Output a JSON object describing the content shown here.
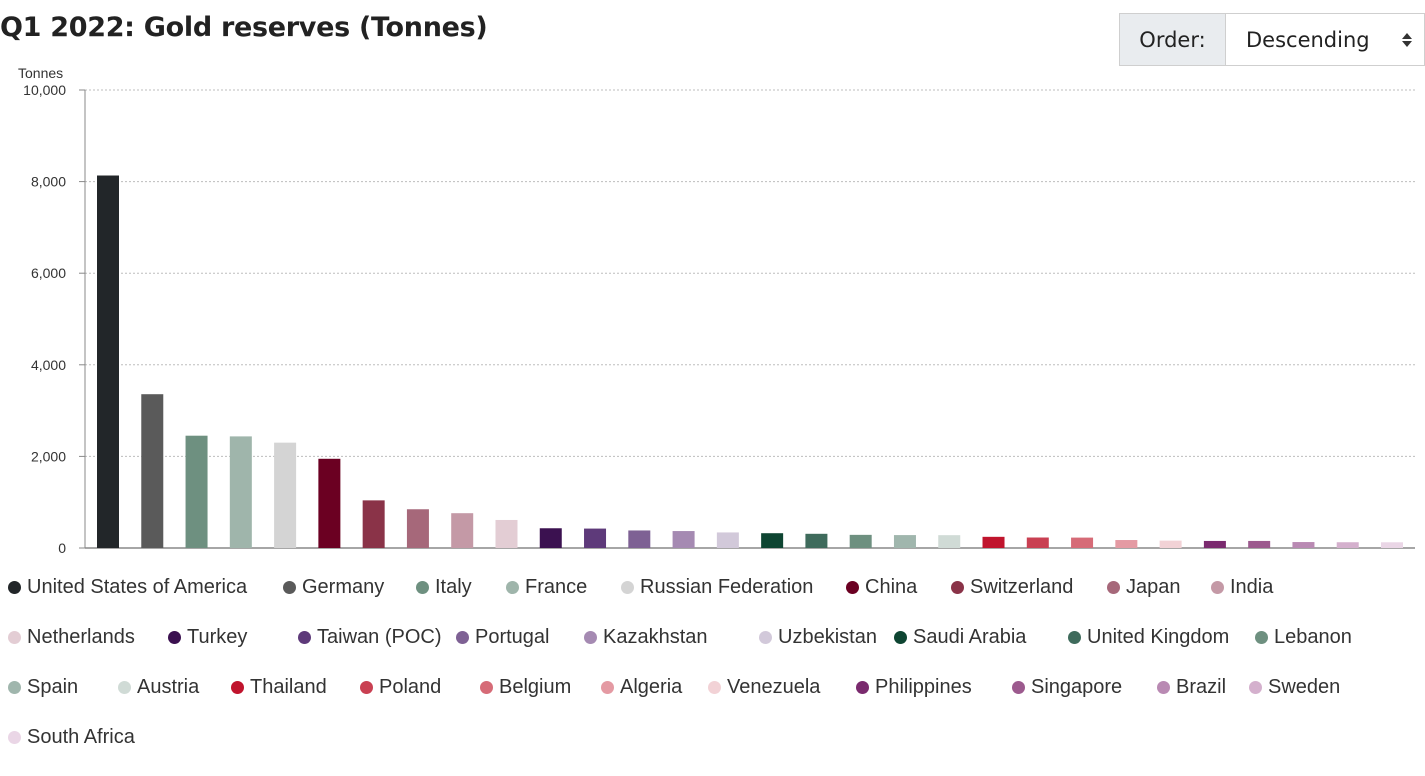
{
  "title": "Q1 2022: Gold reserves (Tonnes)",
  "order_control": {
    "label": "Order:",
    "value": "Descending"
  },
  "chart_data": {
    "type": "bar",
    "title": "Q1 2022: Gold reserves (Tonnes)",
    "ylabel": "Tonnes",
    "xlabel": "",
    "ylim": [
      0,
      10000
    ],
    "yticks": [
      0,
      2000,
      4000,
      6000,
      8000,
      10000
    ],
    "ytick_labels": [
      "0",
      "2,000",
      "4,000",
      "6,000",
      "8,000",
      "10,000"
    ],
    "grid": true,
    "legend_position": "bottom",
    "categories": [
      "United States of America",
      "Germany",
      "Italy",
      "France",
      "Russian Federation",
      "China",
      "Switzerland",
      "Japan",
      "India",
      "Netherlands",
      "Turkey",
      "Taiwan (POC)",
      "Portugal",
      "Kazakhstan",
      "Uzbekistan",
      "Saudi Arabia",
      "United Kingdom",
      "Lebanon",
      "Spain",
      "Austria",
      "Thailand",
      "Poland",
      "Belgium",
      "Algeria",
      "Venezuela",
      "Philippines",
      "Singapore",
      "Brazil",
      "Sweden",
      "South Africa"
    ],
    "values": [
      8133,
      3358,
      2452,
      2437,
      2300,
      1948,
      1040,
      846,
      760,
      612,
      431,
      424,
      383,
      370,
      340,
      323,
      310,
      287,
      282,
      280,
      244,
      229,
      227,
      174,
      161,
      154,
      154,
      130,
      126,
      125
    ],
    "colors": [
      "#222629",
      "#5a5a5a",
      "#6e9080",
      "#9fb5ab",
      "#d4d4d4",
      "#6b0022",
      "#8a3348",
      "#a6687a",
      "#c499a6",
      "#e3cdd4",
      "#3b1150",
      "#5e3a7a",
      "#7e6194",
      "#a58ab2",
      "#d2c9da",
      "#0e4532",
      "#3f6b5c",
      "#6e9080",
      "#a0b6ad",
      "#d0dbd6",
      "#c0142d",
      "#c94052",
      "#d66b77",
      "#e49aa3",
      "#f2d2d6",
      "#7a2a6e",
      "#9c5a8e",
      "#b98ab3",
      "#d4b0cd",
      "#ead6e6"
    ]
  }
}
